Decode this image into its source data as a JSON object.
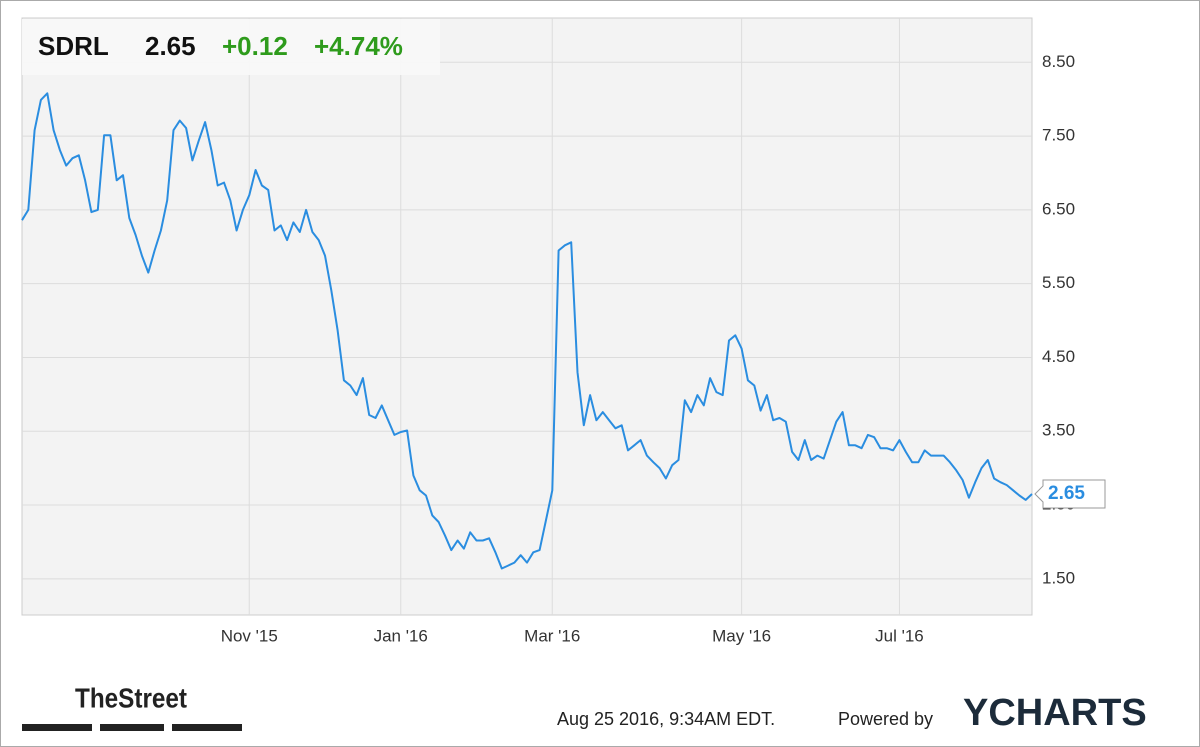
{
  "header": {
    "ticker": "SDRL",
    "price": "2.65",
    "change": "+0.12",
    "change_pct": "+4.74%"
  },
  "chart_data": {
    "type": "line",
    "series": [
      {
        "name": "SDRL",
        "color": "#2a8de0",
        "values": [
          6.36,
          6.5,
          7.58,
          7.99,
          8.08,
          7.58,
          7.31,
          7.1,
          7.2,
          7.24,
          6.9,
          6.47,
          6.5,
          7.51,
          7.51,
          6.9,
          6.97,
          6.39,
          6.16,
          5.88,
          5.65,
          5.95,
          6.22,
          6.63,
          7.58,
          7.71,
          7.61,
          7.17,
          7.44,
          7.69,
          7.31,
          6.83,
          6.87,
          6.63,
          6.22,
          6.5,
          6.7,
          7.04,
          6.83,
          6.77,
          6.22,
          6.29,
          6.09,
          6.33,
          6.2,
          6.5,
          6.2,
          6.09,
          5.88,
          5.41,
          4.87,
          4.19,
          4.12,
          3.99,
          4.22,
          3.72,
          3.68,
          3.85,
          3.65,
          3.45,
          3.49,
          3.51,
          2.9,
          2.7,
          2.63,
          2.36,
          2.27,
          2.09,
          1.89,
          2.02,
          1.91,
          2.13,
          2.02,
          2.02,
          2.05,
          1.86,
          1.64,
          1.68,
          1.72,
          1.82,
          1.72,
          1.86,
          1.89,
          2.29,
          2.7,
          5.95,
          6.02,
          6.06,
          4.3,
          3.58,
          3.99,
          3.65,
          3.76,
          3.65,
          3.54,
          3.58,
          3.24,
          3.31,
          3.38,
          3.17,
          3.08,
          3.0,
          2.86,
          3.04,
          3.11,
          3.92,
          3.76,
          3.99,
          3.85,
          4.22,
          4.03,
          3.99,
          4.73,
          4.8,
          4.62,
          4.19,
          4.12,
          3.78,
          3.99,
          3.65,
          3.68,
          3.63,
          3.22,
          3.11,
          3.38,
          3.11,
          3.17,
          3.13,
          3.38,
          3.63,
          3.76,
          3.31,
          3.31,
          3.27,
          3.45,
          3.42,
          3.27,
          3.27,
          3.24,
          3.38,
          3.22,
          3.08,
          3.08,
          3.24,
          3.17,
          3.17,
          3.17,
          3.08,
          2.97,
          2.84,
          2.6,
          2.81,
          3.0,
          3.11,
          2.86,
          2.81,
          2.77,
          2.7,
          2.63,
          2.57,
          2.65
        ]
      }
    ],
    "xlim": [
      0,
      160
    ],
    "xticks": [
      {
        "value": 36,
        "label": "Nov '15"
      },
      {
        "value": 60,
        "label": "Jan '16"
      },
      {
        "value": 84,
        "label": "Mar '16"
      },
      {
        "value": 114,
        "label": "May '16"
      },
      {
        "value": 139,
        "label": "Jul '16"
      }
    ],
    "ylim": [
      1.01,
      9.1
    ],
    "yticks": [
      {
        "value": 1.5,
        "label": "1.50"
      },
      {
        "value": 2.5,
        "label": "2.50"
      },
      {
        "value": 3.5,
        "label": "3.50"
      },
      {
        "value": 4.5,
        "label": "4.50"
      },
      {
        "value": 5.5,
        "label": "5.50"
      },
      {
        "value": 6.5,
        "label": "6.50"
      },
      {
        "value": 7.5,
        "label": "7.50"
      },
      {
        "value": 8.5,
        "label": "8.50"
      }
    ],
    "grid": true
  },
  "footer": {
    "brand": "TheStreet",
    "timestamp": "Aug 25 2016, 9:34AM EDT.",
    "powered": "Powered by",
    "provider": "YCHARTS"
  }
}
